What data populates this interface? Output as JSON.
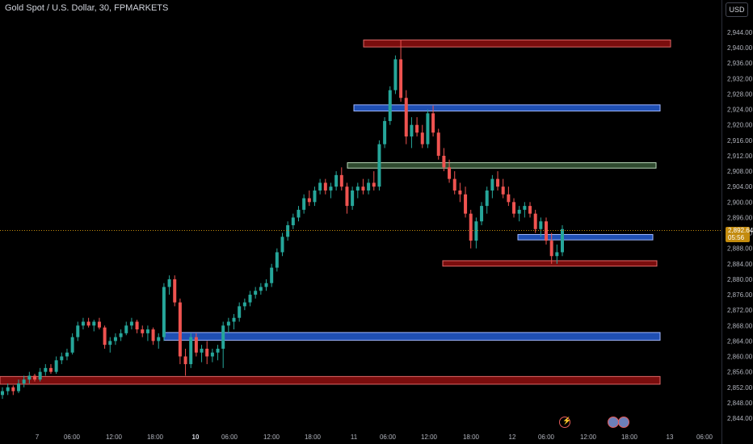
{
  "header": {
    "symbol_title": "Gold Spot / U.S. Dollar, 30, FPMARKETS"
  },
  "price_axis": {
    "currency": "USD"
  },
  "current_price": {
    "price": "2,892.64",
    "countdown": "05:56",
    "value": 2892.64
  },
  "chart_data": {
    "type": "candlestick",
    "y_ticks": [
      "2,944.00",
      "2,940.00",
      "2,936.00",
      "2,932.00",
      "2,928.00",
      "2,924.00",
      "2,920.00",
      "2,916.00",
      "2,912.00",
      "2,908.00",
      "2,904.00",
      "2,900.00",
      "2,896.00",
      "2,892.00",
      "2,888.00",
      "2,884.00",
      "2,880.00",
      "2,876.00",
      "2,872.00",
      "2,868.00",
      "2,864.00",
      "2,860.00",
      "2,856.00",
      "2,852.00",
      "2,848.00",
      "2,844.00"
    ],
    "y_values": [
      2944,
      2940,
      2936,
      2932,
      2928,
      2924,
      2920,
      2916,
      2912,
      2908,
      2904,
      2900,
      2896,
      2892,
      2888,
      2884,
      2880,
      2876,
      2872,
      2868,
      2864,
      2860,
      2856,
      2852,
      2848,
      2844
    ],
    "x_ticks": [
      "7",
      "06:00",
      "12:00",
      "18:00",
      "10",
      "06:00",
      "12:00",
      "18:00",
      "11",
      "06:00",
      "12:00",
      "18:00",
      "12",
      "06:00",
      "12:00",
      "18:00",
      "13",
      "06:00"
    ],
    "x_ticks_bold": [
      false,
      false,
      false,
      false,
      true,
      false,
      false,
      false,
      false,
      false,
      false,
      false,
      false,
      false,
      false,
      false,
      false,
      false
    ],
    "ylim": [
      2843,
      2948
    ],
    "zones": [
      {
        "label": "supply-zone-top",
        "from": 2940.2,
        "to": 2942.0,
        "color": "#7a0d0d",
        "border": "#e06666"
      },
      {
        "label": "zone-2924",
        "from": 2923.6,
        "to": 2925.2,
        "color": "#1f4fb3",
        "border": "#9fb7ff"
      },
      {
        "label": "zone-2910",
        "from": 2908.8,
        "to": 2910.2,
        "color": "#2f4a2f",
        "border": "#b7d7b7"
      },
      {
        "label": "zone-2891",
        "from": 2890.2,
        "to": 2891.6,
        "color": "#1f4fb3",
        "border": "#9fb7ff"
      },
      {
        "label": "zone-2884",
        "from": 2883.4,
        "to": 2884.8,
        "color": "#7a0d0d",
        "border": "#e06666"
      },
      {
        "label": "zone-2865",
        "from": 2864.2,
        "to": 2866.2,
        "color": "#1f4fb3",
        "border": "#9fb7ff"
      },
      {
        "label": "zone-2854",
        "from": 2852.8,
        "to": 2854.8,
        "color": "#7a0d0d",
        "border": "#e06666"
      }
    ],
    "candles": [
      [
        2850,
        2852,
        2849,
        2851
      ],
      [
        2851,
        2853,
        2850,
        2852
      ],
      [
        2852,
        2852.5,
        2850,
        2851
      ],
      [
        2851,
        2854,
        2850.5,
        2853
      ],
      [
        2853,
        2855,
        2852,
        2854
      ],
      [
        2854,
        2856,
        2853,
        2855
      ],
      [
        2855,
        2855.5,
        2853.5,
        2854
      ],
      [
        2854,
        2857,
        2853.5,
        2856
      ],
      [
        2856,
        2858,
        2855,
        2857
      ],
      [
        2857,
        2858,
        2855.5,
        2856
      ],
      [
        2856,
        2860,
        2855.5,
        2859
      ],
      [
        2859,
        2861,
        2858,
        2860
      ],
      [
        2860,
        2862,
        2859,
        2861
      ],
      [
        2861,
        2866,
        2860.5,
        2865
      ],
      [
        2865,
        2869,
        2864,
        2868
      ],
      [
        2868,
        2870,
        2867,
        2869
      ],
      [
        2869,
        2870,
        2867.5,
        2868
      ],
      [
        2868,
        2869.5,
        2866.5,
        2869
      ],
      [
        2869,
        2870,
        2867,
        2867.5
      ],
      [
        2867.5,
        2868,
        2862,
        2863
      ],
      [
        2863,
        2865,
        2861,
        2864
      ],
      [
        2864,
        2866,
        2863,
        2865
      ],
      [
        2865,
        2867,
        2864,
        2866
      ],
      [
        2866,
        2869,
        2865.5,
        2868
      ],
      [
        2868,
        2870,
        2867,
        2869
      ],
      [
        2869,
        2869.5,
        2866,
        2867
      ],
      [
        2867,
        2868,
        2865,
        2866
      ],
      [
        2866,
        2868,
        2864,
        2867
      ],
      [
        2867,
        2867.5,
        2863,
        2864
      ],
      [
        2864,
        2866,
        2862,
        2865
      ],
      [
        2865,
        2879,
        2864,
        2878
      ],
      [
        2878,
        2881,
        2876,
        2880
      ],
      [
        2880,
        2881,
        2873,
        2874
      ],
      [
        2874,
        2875,
        2858,
        2860
      ],
      [
        2860,
        2862,
        2855,
        2858
      ],
      [
        2858,
        2866,
        2857,
        2865
      ],
      [
        2865,
        2866,
        2860,
        2861
      ],
      [
        2861,
        2863,
        2858.5,
        2862
      ],
      [
        2862,
        2864,
        2858,
        2860
      ],
      [
        2860,
        2862,
        2858.5,
        2861
      ],
      [
        2861,
        2863,
        2859,
        2862
      ],
      [
        2862,
        2869,
        2857,
        2868
      ],
      [
        2868,
        2870,
        2866,
        2869
      ],
      [
        2869,
        2871,
        2867,
        2870
      ],
      [
        2870,
        2874,
        2869,
        2873
      ],
      [
        2873,
        2875,
        2872,
        2874
      ],
      [
        2874,
        2877,
        2873,
        2876
      ],
      [
        2876,
        2878,
        2875,
        2877
      ],
      [
        2877,
        2879,
        2876,
        2878
      ],
      [
        2878,
        2880,
        2877,
        2879
      ],
      [
        2879,
        2884,
        2878,
        2883
      ],
      [
        2883,
        2888,
        2882,
        2887
      ],
      [
        2887,
        2892,
        2886,
        2891
      ],
      [
        2891,
        2895,
        2890,
        2894
      ],
      [
        2894,
        2897,
        2893,
        2896
      ],
      [
        2896,
        2899,
        2895,
        2898
      ],
      [
        2898,
        2902,
        2897,
        2901
      ],
      [
        2901,
        2903,
        2899,
        2900
      ],
      [
        2900,
        2904,
        2899,
        2903
      ],
      [
        2903,
        2906,
        2902,
        2905
      ],
      [
        2905,
        2906,
        2902,
        2903
      ],
      [
        2903,
        2905,
        2901,
        2904
      ],
      [
        2904,
        2908,
        2903,
        2907
      ],
      [
        2907,
        2909,
        2903,
        2904
      ],
      [
        2904,
        2905,
        2897,
        2899
      ],
      [
        2899,
        2904,
        2898,
        2903
      ],
      [
        2903,
        2905,
        2901,
        2904
      ],
      [
        2904,
        2906,
        2902,
        2903
      ],
      [
        2903,
        2906,
        2902,
        2905
      ],
      [
        2905,
        2908,
        2903,
        2904
      ],
      [
        2904,
        2916,
        2903,
        2915
      ],
      [
        2915,
        2922,
        2914,
        2921
      ],
      [
        2921,
        2930,
        2920,
        2929
      ],
      [
        2929,
        2938,
        2928,
        2937
      ],
      [
        2937,
        2942,
        2926,
        2927
      ],
      [
        2927,
        2929,
        2915,
        2917
      ],
      [
        2917,
        2922,
        2914,
        2920
      ],
      [
        2920,
        2922,
        2917,
        2918
      ],
      [
        2918,
        2920,
        2914,
        2915
      ],
      [
        2915,
        2924,
        2914,
        2923
      ],
      [
        2923,
        2925,
        2917,
        2918
      ],
      [
        2918,
        2919,
        2911,
        2912
      ],
      [
        2912,
        2914,
        2908,
        2909
      ],
      [
        2909,
        2911,
        2905,
        2906
      ],
      [
        2906,
        2908,
        2902,
        2903
      ],
      [
        2903,
        2905,
        2900,
        2902
      ],
      [
        2902,
        2904,
        2896,
        2897
      ],
      [
        2897,
        2898,
        2888,
        2890
      ],
      [
        2890,
        2896,
        2888,
        2895
      ],
      [
        2895,
        2900,
        2894,
        2899
      ],
      [
        2899,
        2904,
        2897,
        2903
      ],
      [
        2903,
        2907,
        2901,
        2906
      ],
      [
        2906,
        2908,
        2903,
        2904
      ],
      [
        2904,
        2906,
        2901,
        2902
      ],
      [
        2902,
        2904,
        2899,
        2900
      ],
      [
        2900,
        2901,
        2896,
        2897
      ],
      [
        2897,
        2899,
        2895,
        2898
      ],
      [
        2898,
        2900,
        2896,
        2899
      ],
      [
        2899,
        2900,
        2896,
        2897
      ],
      [
        2897,
        2898,
        2892,
        2893
      ],
      [
        2893,
        2896,
        2891,
        2895
      ],
      [
        2895,
        2896,
        2889,
        2890
      ],
      [
        2890,
        2892,
        2884,
        2886
      ],
      [
        2886,
        2889,
        2884,
        2887
      ],
      [
        2887,
        2894,
        2886,
        2893
      ]
    ]
  }
}
